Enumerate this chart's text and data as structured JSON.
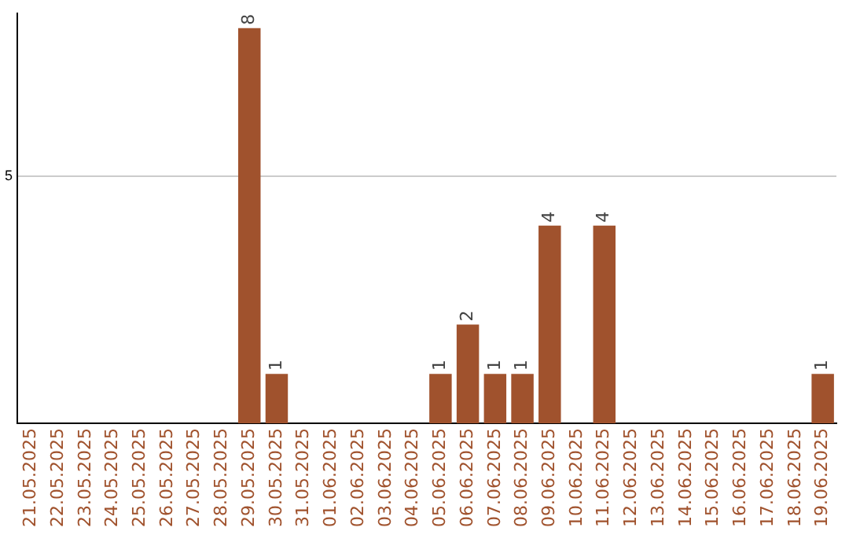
{
  "chart_data": {
    "type": "bar",
    "categories": [
      "21.05.2025",
      "22.05.2025",
      "23.05.2025",
      "24.05.2025",
      "25.05.2025",
      "26.05.2025",
      "27.05.2025",
      "28.05.2025",
      "29.05.2025",
      "30.05.2025",
      "31.05.2025",
      "01.06.2025",
      "02.06.2025",
      "03.06.2025",
      "04.06.2025",
      "05.06.2025",
      "06.06.2025",
      "07.06.2025",
      "08.06.2025",
      "09.06.2025",
      "10.06.2025",
      "11.06.2025",
      "12.06.2025",
      "13.06.2025",
      "14.06.2025",
      "15.06.2025",
      "16.06.2025",
      "17.06.2025",
      "18.06.2025",
      "19.06.2025"
    ],
    "values": [
      0,
      0,
      0,
      0,
      0,
      0,
      0,
      0,
      8,
      1,
      0,
      0,
      0,
      0,
      0,
      1,
      2,
      1,
      1,
      4,
      0,
      4,
      0,
      0,
      0,
      0,
      0,
      0,
      0,
      1
    ],
    "value_labels": [
      null,
      null,
      null,
      null,
      null,
      null,
      null,
      null,
      "8",
      "1",
      null,
      null,
      null,
      null,
      null,
      "1",
      "2",
      "1",
      "1",
      "4",
      null,
      "4",
      null,
      null,
      null,
      null,
      null,
      null,
      null,
      "1"
    ],
    "color": "#a0522d",
    "ylim": [
      0,
      8.3
    ],
    "yticks": [
      5
    ],
    "grid": "y"
  }
}
